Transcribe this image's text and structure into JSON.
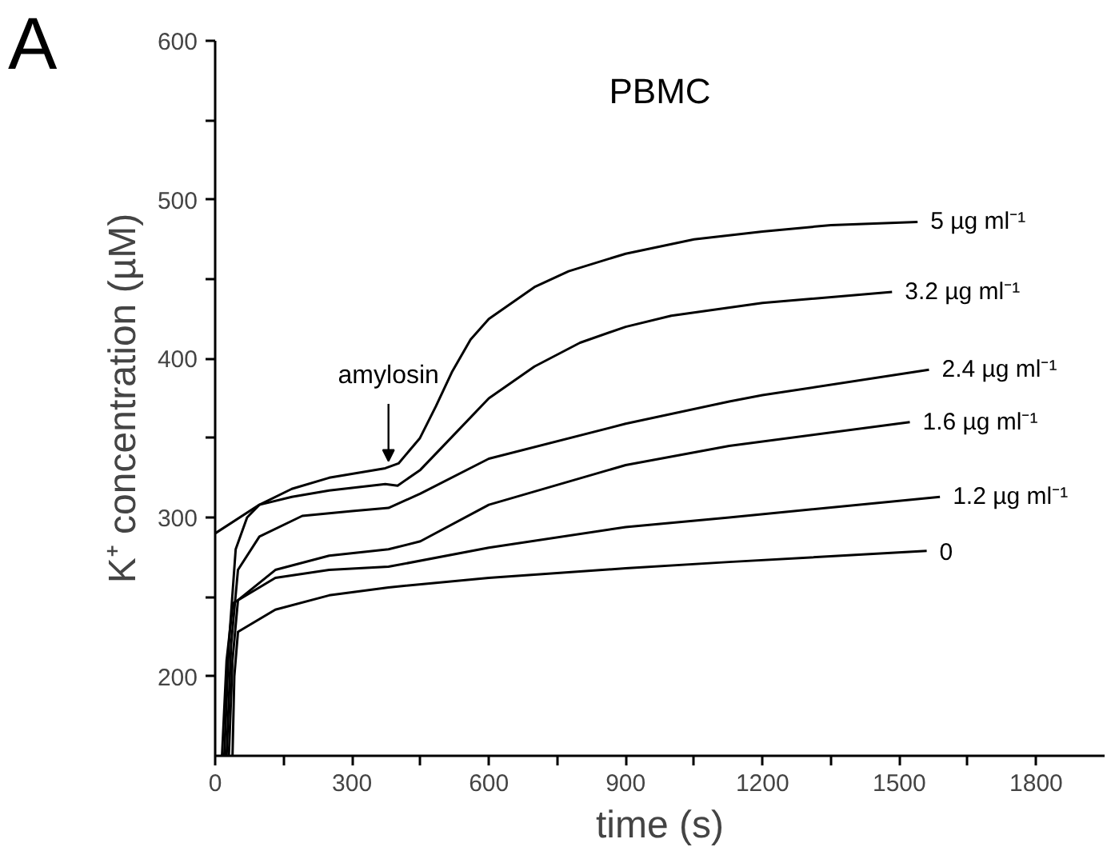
{
  "chart_data": {
    "type": "line",
    "title": "PBMC",
    "xlabel": "time (s)",
    "ylabel": "K⁺ concentration (µM)",
    "xlim": [
      0,
      1950
    ],
    "ylim": [
      150,
      600
    ],
    "xticks": [
      0,
      {
        "value": 150,
        "label": null
      },
      300,
      {
        "value": 450,
        "label": null
      },
      600,
      {
        "value": 750,
        "label": null
      },
      900,
      {
        "value": 1050,
        "label": null
      },
      1200,
      {
        "value": 1350,
        "label": null
      },
      1500,
      {
        "value": 1650,
        "label": null
      },
      1800
    ],
    "yticks": [
      200,
      {
        "value": 250,
        "label": null
      },
      300,
      {
        "value": 350,
        "label": null
      },
      400,
      {
        "value": 450,
        "label": null
      },
      500,
      {
        "value": 550,
        "label": null
      },
      600
    ],
    "grid": false,
    "marker": "none",
    "line_style": "solid",
    "annotations": [
      "A",
      {
        "text": "amylosin",
        "x": 380,
        "y": 331
      }
    ],
    "series": [
      {
        "name": "5 µg ml⁻¹",
        "color": "#000000",
        "x": [
          0,
          97,
          168,
          250,
          373,
          402,
          449,
          484,
          520,
          560,
          600,
          700,
          775,
          900,
          1050,
          1200,
          1350,
          1540
        ],
        "values": [
          290,
          308,
          318,
          325,
          331,
          334,
          350,
          370,
          392,
          412,
          425,
          445,
          455,
          466,
          475,
          480,
          484,
          486
        ]
      },
      {
        "name": "3.2 µg ml⁻¹",
        "color": "#000000",
        "x": [
          20,
          30,
          45,
          70,
          97,
          168,
          250,
          373,
          400,
          450,
          500,
          600,
          700,
          800,
          900,
          1000,
          1200,
          1484
        ],
        "values": [
          150,
          220,
          280,
          300,
          308,
          313,
          317,
          321,
          320,
          330,
          345,
          375,
          395,
          410,
          420,
          427,
          435,
          442
        ]
      },
      {
        "name": "2.4 µg ml⁻¹",
        "color": "#000000",
        "x": [
          25,
          35,
          50,
          97,
          191,
          300,
          380,
          450,
          600,
          900,
          1127,
          1200,
          1565
        ],
        "values": [
          150,
          220,
          267,
          288,
          301,
          304,
          306,
          315,
          337,
          359,
          373,
          377,
          393
        ]
      },
      {
        "name": "1.6 µg ml⁻¹",
        "color": "#000000",
        "x": [
          30,
          38,
          50,
          132,
          250,
          380,
          450,
          600,
          900,
          1127,
          1523
        ],
        "values": [
          150,
          210,
          248,
          267,
          276,
          280,
          285,
          308,
          333,
          345,
          360
        ]
      },
      {
        "name": "1.2 µg ml⁻¹",
        "color": "#000000",
        "x": [
          15,
          25,
          39,
          132,
          250,
          380,
          600,
          900,
          1127,
          1589
        ],
        "values": [
          150,
          210,
          246,
          262,
          267,
          269,
          281,
          294,
          300,
          313
        ]
      },
      {
        "name": "0",
        "color": "#000000",
        "x": [
          38,
          42,
          50,
          132,
          250,
          380,
          600,
          900,
          1127,
          1560
        ],
        "values": [
          150,
          200,
          228,
          242,
          251,
          256,
          262,
          268,
          272,
          279
        ]
      }
    ]
  }
}
